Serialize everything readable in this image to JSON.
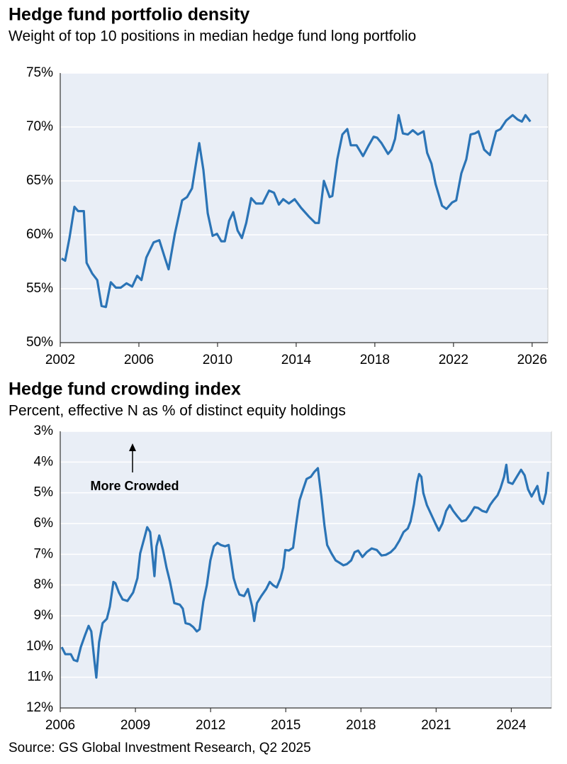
{
  "chart_data": [
    {
      "type": "line",
      "title": "Hedge fund portfolio density",
      "subtitle": "Weight of top 10 positions in median hedge fund long portfolio",
      "x": [
        2002.07,
        2002.25,
        2002.47,
        2002.72,
        2002.91,
        2003.2,
        2003.34,
        2003.63,
        2003.88,
        2004.1,
        2004.32,
        2004.57,
        2004.83,
        2005.08,
        2005.37,
        2005.66,
        2005.91,
        2006.13,
        2006.38,
        2006.75,
        2007.04,
        2007.33,
        2007.51,
        2007.83,
        2008.2,
        2008.45,
        2008.7,
        2009.07,
        2009.28,
        2009.5,
        2009.75,
        2009.97,
        2010.19,
        2010.37,
        2010.59,
        2010.8,
        2011.02,
        2011.24,
        2011.46,
        2011.71,
        2011.96,
        2012.29,
        2012.62,
        2012.87,
        2013.12,
        2013.34,
        2013.63,
        2013.92,
        2014.25,
        2014.64,
        2014.97,
        2015.15,
        2015.41,
        2015.7,
        2015.84,
        2016.09,
        2016.35,
        2016.6,
        2016.78,
        2017.07,
        2017.4,
        2017.69,
        2017.94,
        2018.12,
        2018.34,
        2018.67,
        2018.85,
        2019.03,
        2019.21,
        2019.43,
        2019.68,
        2019.93,
        2020.19,
        2020.48,
        2020.66,
        2020.88,
        2021.09,
        2021.42,
        2021.64,
        2021.93,
        2022.14,
        2022.4,
        2022.65,
        2022.87,
        2023.09,
        2023.27,
        2023.56,
        2023.85,
        2024.17,
        2024.39,
        2024.68,
        2025.01,
        2025.26,
        2025.48,
        2025.66,
        2025.91
      ],
      "values": [
        57.8,
        57.6,
        59.7,
        62.6,
        62.2,
        62.2,
        57.4,
        56.4,
        55.8,
        53.4,
        53.3,
        55.6,
        55.1,
        55.1,
        55.5,
        55.2,
        56.2,
        55.8,
        57.9,
        59.3,
        59.5,
        57.8,
        56.8,
        60.1,
        63.2,
        63.5,
        64.3,
        68.5,
        66.0,
        62.0,
        59.9,
        60.1,
        59.4,
        59.4,
        61.3,
        62.1,
        60.4,
        59.7,
        61.1,
        63.4,
        62.9,
        62.9,
        64.1,
        63.9,
        62.8,
        63.3,
        62.9,
        63.3,
        62.5,
        61.7,
        61.1,
        61.1,
        65.0,
        63.5,
        63.6,
        67.0,
        69.3,
        69.8,
        68.3,
        68.3,
        67.3,
        68.3,
        69.1,
        69.0,
        68.5,
        67.5,
        67.9,
        68.9,
        71.1,
        69.4,
        69.3,
        69.7,
        69.3,
        69.6,
        67.6,
        66.6,
        64.7,
        62.7,
        62.4,
        63.0,
        63.2,
        65.7,
        67.0,
        69.3,
        69.4,
        69.6,
        67.9,
        67.4,
        69.6,
        69.8,
        70.6,
        71.1,
        70.7,
        70.5,
        71.1,
        70.5
      ],
      "color": "#2b74b6",
      "xlim": [
        2002,
        2026.8
      ],
      "xticks": [
        2002,
        2006,
        2010,
        2014,
        2018,
        2022,
        2026
      ],
      "ylim": [
        50,
        75
      ],
      "yticks": [
        {
          "value": 50,
          "label": "50%"
        },
        {
          "value": 55,
          "label": "55%"
        },
        {
          "value": 60,
          "label": "60%"
        },
        {
          "value": 65,
          "label": "65%"
        },
        {
          "value": 70,
          "label": "70%"
        },
        {
          "value": 75,
          "label": "75%"
        }
      ],
      "grid": true
    },
    {
      "type": "line",
      "title": "Hedge fund crowding index",
      "subtitle": "Percent, effective N as % of distinct equity holdings",
      "annotation": "More Crowded",
      "x": [
        2006.06,
        2006.2,
        2006.42,
        2006.54,
        2006.68,
        2006.82,
        2006.99,
        2007.13,
        2007.24,
        2007.36,
        2007.44,
        2007.55,
        2007.69,
        2007.86,
        2007.98,
        2008.12,
        2008.2,
        2008.34,
        2008.49,
        2008.68,
        2008.91,
        2009.08,
        2009.19,
        2009.36,
        2009.47,
        2009.59,
        2009.7,
        2009.76,
        2009.84,
        2009.95,
        2010.1,
        2010.24,
        2010.38,
        2010.55,
        2010.77,
        2010.89,
        2011.0,
        2011.17,
        2011.31,
        2011.45,
        2011.56,
        2011.71,
        2011.85,
        2011.99,
        2012.13,
        2012.27,
        2012.41,
        2012.58,
        2012.72,
        2012.92,
        2013.03,
        2013.15,
        2013.34,
        2013.49,
        2013.66,
        2013.74,
        2013.85,
        2014.02,
        2014.22,
        2014.36,
        2014.5,
        2014.64,
        2014.79,
        2014.9,
        2014.98,
        2015.12,
        2015.29,
        2015.41,
        2015.55,
        2015.69,
        2015.83,
        2016.0,
        2016.14,
        2016.28,
        2016.42,
        2016.54,
        2016.65,
        2016.82,
        2016.99,
        2017.13,
        2017.3,
        2017.44,
        2017.61,
        2017.75,
        2017.89,
        2018.06,
        2018.23,
        2018.43,
        2018.63,
        2018.82,
        2018.99,
        2019.19,
        2019.36,
        2019.53,
        2019.7,
        2019.87,
        2019.98,
        2020.12,
        2020.24,
        2020.32,
        2020.41,
        2020.49,
        2020.63,
        2020.8,
        2020.97,
        2021.11,
        2021.25,
        2021.4,
        2021.54,
        2021.68,
        2021.85,
        2022.02,
        2022.19,
        2022.36,
        2022.53,
        2022.67,
        2022.84,
        2023.01,
        2023.15,
        2023.29,
        2023.45,
        2023.57,
        2023.71,
        2023.8,
        2023.88,
        2024.05,
        2024.22,
        2024.39,
        2024.53,
        2024.67,
        2024.81,
        2024.93,
        2025.04,
        2025.15,
        2025.27,
        2025.38,
        2025.47
      ],
      "values": [
        10.02,
        10.25,
        10.25,
        10.44,
        10.48,
        10.02,
        9.63,
        9.33,
        9.51,
        10.44,
        11.01,
        9.86,
        9.24,
        9.1,
        8.7,
        7.9,
        7.94,
        8.24,
        8.47,
        8.52,
        8.24,
        7.78,
        6.97,
        6.46,
        6.12,
        6.28,
        7.2,
        7.71,
        6.74,
        6.39,
        6.86,
        7.43,
        7.9,
        8.59,
        8.64,
        8.77,
        9.24,
        9.28,
        9.37,
        9.51,
        9.44,
        8.54,
        8.01,
        7.2,
        6.74,
        6.63,
        6.7,
        6.74,
        6.7,
        7.78,
        8.08,
        8.31,
        8.36,
        8.13,
        8.7,
        9.17,
        8.59,
        8.36,
        8.13,
        7.9,
        8.01,
        8.08,
        7.78,
        7.43,
        6.86,
        6.88,
        6.79,
        6.05,
        5.24,
        4.89,
        4.55,
        4.48,
        4.32,
        4.2,
        5.12,
        6.05,
        6.7,
        6.97,
        7.2,
        7.27,
        7.36,
        7.32,
        7.2,
        6.93,
        6.88,
        7.09,
        6.93,
        6.81,
        6.86,
        7.04,
        7.02,
        6.93,
        6.79,
        6.56,
        6.28,
        6.16,
        5.93,
        5.36,
        4.66,
        4.39,
        4.48,
        5.01,
        5.4,
        5.7,
        6.0,
        6.23,
        6.0,
        5.59,
        5.4,
        5.59,
        5.77,
        5.93,
        5.89,
        5.7,
        5.47,
        5.49,
        5.59,
        5.63,
        5.4,
        5.24,
        5.08,
        4.85,
        4.48,
        4.09,
        4.66,
        4.71,
        4.48,
        4.25,
        4.43,
        4.89,
        5.12,
        4.94,
        4.78,
        5.24,
        5.36,
        5.01,
        4.32
      ],
      "color": "#2b74b6",
      "xlim": [
        2006,
        2025.6
      ],
      "xticks": [
        2006,
        2009,
        2012,
        2015,
        2018,
        2021,
        2024
      ],
      "ylim": [
        12,
        3
      ],
      "yticks": [
        {
          "value": 3,
          "label": "3%"
        },
        {
          "value": 4,
          "label": "4%"
        },
        {
          "value": 5,
          "label": "5%"
        },
        {
          "value": 6,
          "label": "6%"
        },
        {
          "value": 7,
          "label": "7%"
        },
        {
          "value": 8,
          "label": "8%"
        },
        {
          "value": 9,
          "label": "9%"
        },
        {
          "value": 10,
          "label": "10%"
        },
        {
          "value": 11,
          "label": "11%"
        },
        {
          "value": 12,
          "label": "12%"
        }
      ],
      "grid": true
    }
  ],
  "source": "Source: GS Global Investment Research, Q2 2025"
}
